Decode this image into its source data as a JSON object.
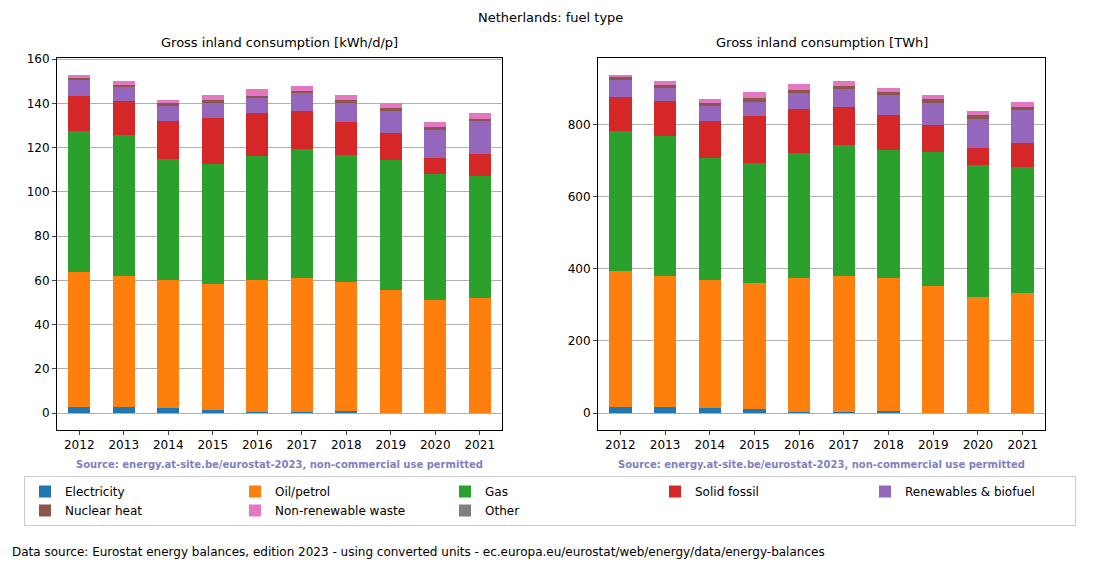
{
  "title": "Netherlands: fuel type",
  "footnote": "Data source: Eurostat energy balances, edition 2023 - using converted units - ec.europa.eu/eurostat/web/energy/data/energy-balances",
  "chart_data": [
    {
      "type": "bar",
      "stacked": true,
      "grid": true,
      "legend": "lower center",
      "title": "Gross inland consumption [kWh/d/p]",
      "annotations": [
        "Source: energy.at-site.be/eurostat-2023, non-commercial use permitted"
      ],
      "categories": [
        "2012",
        "2013",
        "2014",
        "2015",
        "2016",
        "2017",
        "2018",
        "2019",
        "2020",
        "2021"
      ],
      "ylim": [
        -7.6,
        160.5
      ],
      "yticks": [
        0,
        20,
        40,
        60,
        80,
        100,
        120,
        140,
        160
      ],
      "series": [
        {
          "name": "Electricity",
          "color": "#1f77b4",
          "values": [
            3,
            3,
            2.5,
            1.5,
            0.5,
            0.5,
            1,
            0,
            0,
            0
          ]
        },
        {
          "name": "Oil/petrol",
          "color": "#ff7f0e",
          "values": [
            61,
            59,
            57.5,
            57,
            59.5,
            60.5,
            58.5,
            55.5,
            51,
            52
          ]
        },
        {
          "name": "Gas",
          "color": "#2ca02c",
          "values": [
            63.5,
            63.5,
            55,
            54,
            56,
            58.5,
            57,
            59,
            57,
            55
          ]
        },
        {
          "name": "Solid fossil",
          "color": "#d62728",
          "values": [
            16,
            15.5,
            17,
            21,
            19.5,
            17,
            15,
            12,
            7.5,
            10
          ]
        },
        {
          "name": "Renewables & biofuel",
          "color": "#9467bd",
          "values": [
            7,
            6.5,
            7,
            6.5,
            7,
            8,
            8.5,
            10,
            12.5,
            15
          ]
        },
        {
          "name": "Nuclear heat",
          "color": "#8c564b",
          "values": [
            1,
            1,
            1,
            1.5,
            1,
            1,
            1.5,
            1.5,
            1.5,
            1
          ]
        },
        {
          "name": "Non-renewable waste",
          "color": "#e377c2",
          "values": [
            1.5,
            1.5,
            1.5,
            2.5,
            3,
            2.5,
            2.5,
            2,
            2,
            2.5
          ]
        },
        {
          "name": "Other",
          "color": "#7f7f7f",
          "values": [
            0,
            0,
            0,
            0,
            0,
            0,
            0,
            0,
            0,
            0
          ]
        }
      ]
    },
    {
      "type": "bar",
      "stacked": true,
      "grid": true,
      "title": "Gross inland consumption [TWh]",
      "annotations": [
        "Source: energy.at-site.be/eurostat-2023, non-commercial use permitted"
      ],
      "categories": [
        "2012",
        "2013",
        "2014",
        "2015",
        "2016",
        "2017",
        "2018",
        "2019",
        "2020",
        "2021"
      ],
      "ylim": [
        -47,
        985
      ],
      "yticks": [
        0,
        200,
        400,
        600,
        800
      ],
      "series": [
        {
          "name": "Electricity",
          "color": "#1f77b4",
          "values": [
            18,
            18,
            15,
            10,
            3,
            3,
            7,
            0,
            0,
            0
          ]
        },
        {
          "name": "Oil/petrol",
          "color": "#ff7f0e",
          "values": [
            375,
            362,
            355,
            352,
            372,
            377,
            368,
            352,
            323,
            333
          ]
        },
        {
          "name": "Gas",
          "color": "#2ca02c",
          "values": [
            390,
            388,
            338,
            333,
            347,
            365,
            355,
            372,
            365,
            350
          ]
        },
        {
          "name": "Solid fossil",
          "color": "#d62728",
          "values": [
            95,
            97,
            103,
            128,
            122,
            105,
            97,
            75,
            48,
            65
          ]
        },
        {
          "name": "Renewables & biofuel",
          "color": "#9467bd",
          "values": [
            45,
            38,
            42,
            40,
            45,
            50,
            55,
            62,
            80,
            92
          ]
        },
        {
          "name": "Nuclear heat",
          "color": "#8c564b",
          "values": [
            10,
            7,
            8,
            12,
            8,
            8,
            9,
            9,
            10,
            8
          ]
        },
        {
          "name": "Non-renewable waste",
          "color": "#e377c2",
          "values": [
            5,
            10,
            9,
            15,
            15,
            14,
            12,
            13,
            13,
            14
          ]
        },
        {
          "name": "Other",
          "color": "#7f7f7f",
          "values": [
            0,
            0,
            0,
            0,
            0,
            0,
            0,
            0,
            0,
            0
          ]
        }
      ]
    }
  ]
}
